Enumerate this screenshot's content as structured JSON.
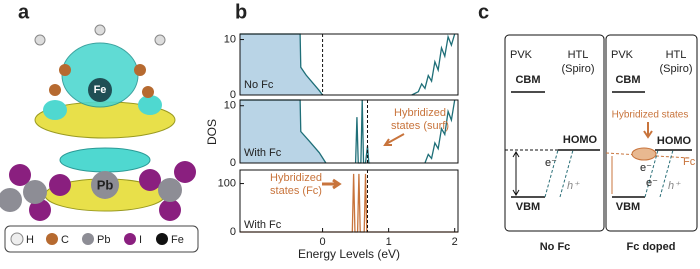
{
  "panels": {
    "a": {
      "label": "a",
      "atoms": [
        "Fe",
        "Pb"
      ],
      "legend": [
        "H",
        "C",
        "Pb",
        "I",
        "Fe"
      ]
    },
    "b": {
      "label": "b"
    },
    "c": {
      "label": "c",
      "left": {
        "pvk": "PVK",
        "htl": "HTL",
        "spiro": "(Spiro)",
        "cbm": "CBM",
        "homo": "HOMO",
        "vbm": "VBM",
        "e": "e⁻",
        "h": "h⁺",
        "caption": "No Fc"
      },
      "right": {
        "pvk": "PVK",
        "htl": "HTL",
        "spiro": "(Spiro)",
        "cbm": "CBM",
        "hyb": "Hybridized states",
        "homo": "HOMO",
        "fc": "Fc",
        "e1": "e⁻",
        "e2": "e⁻",
        "h": "h⁺",
        "vbm": "VBM",
        "caption": "Fc doped"
      }
    }
  },
  "chart_data": [
    {
      "type": "line",
      "annotations": [
        "No Fc"
      ],
      "xlim": [
        -1.25,
        2.05
      ],
      "ylim": [
        0,
        11
      ],
      "yticks": [
        0,
        10
      ],
      "vlines": [
        0
      ],
      "series": [
        {
          "color": "#1f6f78",
          "fill": "#b9d4e6",
          "x": [
            -1.25,
            -0.34,
            -0.33,
            -0.25,
            -0.15,
            -0.05,
            0.0
          ],
          "values": [
            11,
            11,
            5,
            3.6,
            2.2,
            0.8,
            0
          ]
        },
        {
          "color": "#1f6f78",
          "x": [
            1.35,
            1.45,
            1.5,
            1.55,
            1.6,
            1.65,
            1.7,
            1.75,
            1.8,
            1.85,
            1.9,
            1.95,
            2.0
          ],
          "values": [
            0,
            0.6,
            2,
            1.2,
            3.5,
            2.5,
            6,
            4.5,
            8.5,
            7,
            10.5,
            9,
            11
          ]
        }
      ]
    },
    {
      "type": "line",
      "ylabel": "DOS",
      "annotations": [
        "With Fc",
        "Hybridized",
        "states (surf)"
      ],
      "xlim": [
        -1.25,
        2.05
      ],
      "ylim": [
        0,
        11
      ],
      "yticks": [
        0,
        10
      ],
      "vlines": [
        0.68
      ],
      "series": [
        {
          "color": "#1f6f78",
          "fill": "#b9d4e6",
          "x": [
            -1.25,
            -0.34,
            -0.33,
            -0.2,
            -0.05,
            0.05
          ],
          "values": [
            11,
            11,
            5.5,
            3.8,
            1.8,
            0
          ]
        },
        {
          "color": "#1f6f78",
          "x": [
            0.5,
            0.52,
            0.54,
            0.58,
            0.6,
            0.62,
            0.65,
            0.68,
            0.7,
            0.72
          ],
          "values": [
            0,
            8,
            0,
            0,
            11,
            0,
            0,
            3,
            0,
            0
          ]
        },
        {
          "color": "#1f6f78",
          "x": [
            1.55,
            1.6,
            1.65,
            1.7,
            1.75,
            1.8,
            1.85,
            1.9,
            1.95,
            2.0
          ],
          "values": [
            0,
            1.5,
            0.8,
            3.5,
            2.5,
            6,
            5,
            9,
            7.5,
            11
          ]
        }
      ]
    },
    {
      "type": "line",
      "xlabel": "Energy Levels (eV)",
      "annotations": [
        "Hybridized",
        "states (Fc)",
        "With Fc"
      ],
      "xlim": [
        -1.25,
        2.05
      ],
      "ylim": [
        0,
        128
      ],
      "yticks": [
        0,
        100
      ],
      "xticks": [
        0,
        1,
        2
      ],
      "vlines": [
        0.68
      ],
      "series": [
        {
          "color": "#c8743c",
          "x": [
            -1.25,
            0.45,
            0.47,
            0.49,
            0.53,
            0.55,
            0.57,
            0.63,
            0.65,
            0.67,
            2.05
          ],
          "values": [
            0,
            0,
            120,
            0,
            0,
            120,
            0,
            0,
            120,
            0,
            0
          ]
        }
      ]
    }
  ]
}
